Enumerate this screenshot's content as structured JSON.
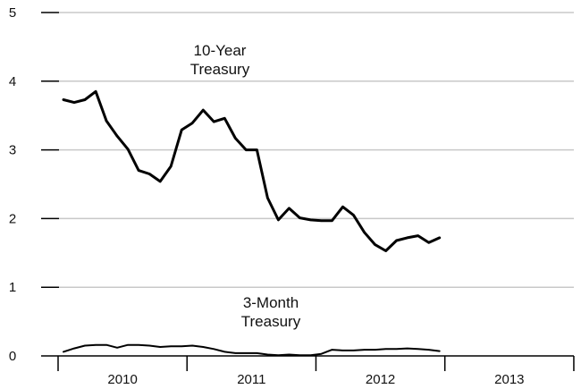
{
  "chart_data": {
    "type": "line",
    "x_unit": "month",
    "xlim": [
      "2010-01",
      "2013-12"
    ],
    "ylim": [
      0,
      5
    ],
    "yticks": [
      0,
      1,
      2,
      3,
      4,
      5
    ],
    "year_labels": [
      "2010",
      "2011",
      "2012",
      "2013"
    ],
    "grid": true,
    "legend": "none",
    "series": [
      {
        "name": "10-Year Treasury",
        "label_lines": [
          "10-Year",
          "Treasury"
        ],
        "color": "#000000",
        "x": [
          "2010-01",
          "2010-02",
          "2010-03",
          "2010-04",
          "2010-05",
          "2010-06",
          "2010-07",
          "2010-08",
          "2010-09",
          "2010-10",
          "2010-11",
          "2010-12",
          "2011-01",
          "2011-02",
          "2011-03",
          "2011-04",
          "2011-05",
          "2011-06",
          "2011-07",
          "2011-08",
          "2011-09",
          "2011-10",
          "2011-11",
          "2011-12",
          "2012-01",
          "2012-02",
          "2012-03",
          "2012-04",
          "2012-05",
          "2012-06",
          "2012-07",
          "2012-08",
          "2012-09",
          "2012-10",
          "2012-11",
          "2012-12"
        ],
        "y": [
          3.73,
          3.69,
          3.73,
          3.85,
          3.42,
          3.2,
          3.01,
          2.7,
          2.65,
          2.54,
          2.76,
          3.29,
          3.39,
          3.58,
          3.41,
          3.46,
          3.17,
          3.0,
          3.0,
          2.3,
          1.98,
          2.15,
          2.01,
          1.98,
          1.97,
          1.97,
          2.17,
          2.05,
          1.8,
          1.62,
          1.53,
          1.68,
          1.72,
          1.75,
          1.65,
          1.72
        ]
      },
      {
        "name": "3-Month Treasury",
        "label_lines": [
          "3-Month",
          "Treasury"
        ],
        "color": "#000000",
        "x": [
          "2010-01",
          "2010-02",
          "2010-03",
          "2010-04",
          "2010-05",
          "2010-06",
          "2010-07",
          "2010-08",
          "2010-09",
          "2010-10",
          "2010-11",
          "2010-12",
          "2011-01",
          "2011-02",
          "2011-03",
          "2011-04",
          "2011-05",
          "2011-06",
          "2011-07",
          "2011-08",
          "2011-09",
          "2011-10",
          "2011-11",
          "2011-12",
          "2012-01",
          "2012-02",
          "2012-03",
          "2012-04",
          "2012-05",
          "2012-06",
          "2012-07",
          "2012-08",
          "2012-09",
          "2012-10",
          "2012-11",
          "2012-12"
        ],
        "y": [
          0.06,
          0.11,
          0.15,
          0.16,
          0.16,
          0.12,
          0.16,
          0.16,
          0.15,
          0.13,
          0.14,
          0.14,
          0.15,
          0.13,
          0.1,
          0.06,
          0.04,
          0.04,
          0.04,
          0.02,
          0.01,
          0.02,
          0.01,
          0.01,
          0.03,
          0.09,
          0.08,
          0.08,
          0.09,
          0.09,
          0.1,
          0.1,
          0.11,
          0.1,
          0.09,
          0.07
        ]
      }
    ]
  }
}
